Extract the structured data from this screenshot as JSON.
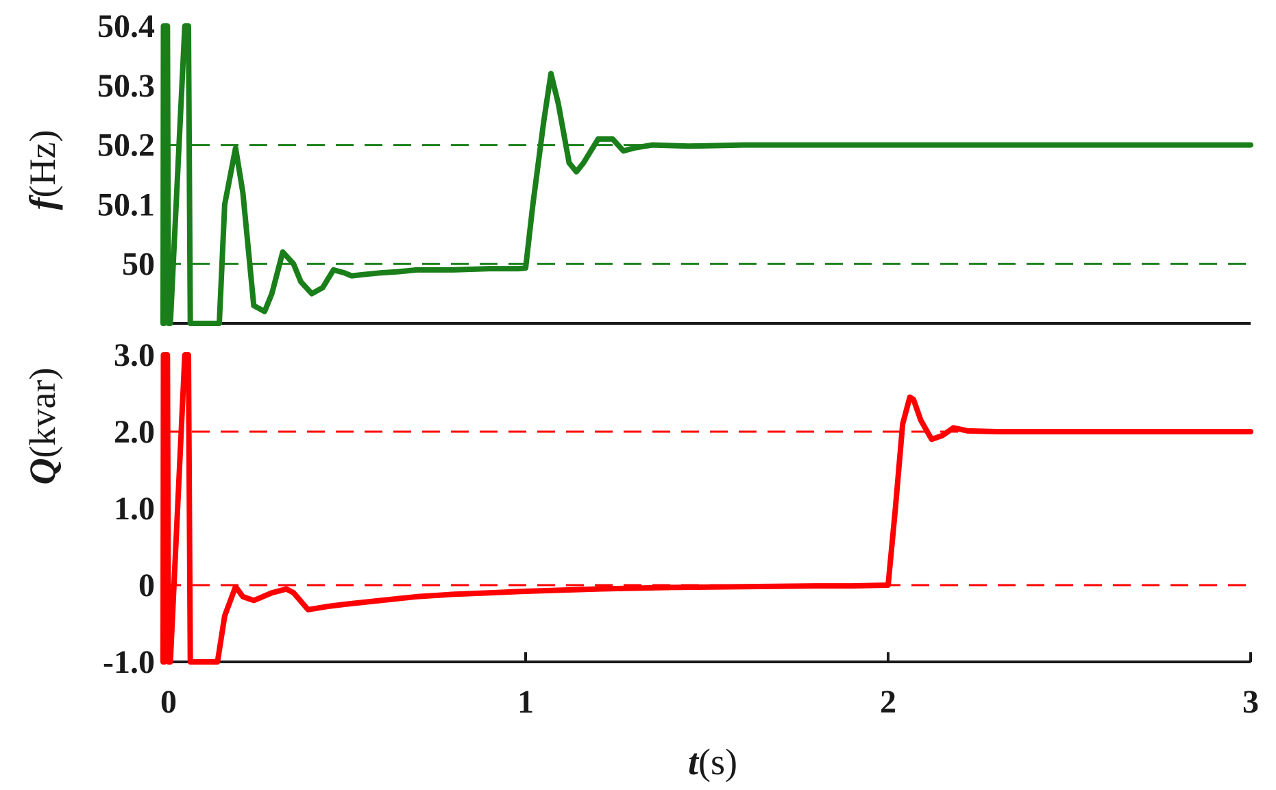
{
  "chart_data": [
    {
      "type": "line",
      "ylabel": {
        "var": "f",
        "unit": "(Hz)"
      },
      "ylim": [
        49.9,
        50.4
      ],
      "xlim": [
        0,
        3
      ],
      "yticks": [
        50,
        50.1,
        50.2,
        50.3,
        50.4
      ],
      "ytick_labels": [
        "50",
        "50.1",
        "50.2",
        "50.3",
        "50.4"
      ],
      "reference_lines": [
        50.2,
        50.0
      ],
      "grid": false,
      "legend": "none",
      "color": "#1a7f1a",
      "series": [
        {
          "x": [
            0,
            0.001,
            0.002,
            0.003,
            0.006,
            0.012,
            0.015,
            0.02,
            0.06,
            0.07,
            0.075,
            0.09,
            0.12,
            0.15,
            0.155,
            0.17,
            0.2,
            0.22,
            0.25,
            0.28,
            0.3,
            0.33,
            0.36,
            0.38,
            0.41,
            0.44,
            0.47,
            0.5,
            0.52,
            0.55,
            0.6,
            0.65,
            0.7,
            0.8,
            0.9,
            0.98,
            1.0,
            1.02,
            1.05,
            1.07,
            1.09,
            1.12,
            1.14,
            1.16,
            1.2,
            1.24,
            1.27,
            1.3,
            1.35,
            1.45,
            1.6,
            1.8,
            2.0,
            2.2,
            2.4,
            2.6,
            2.8,
            3.0
          ],
          "y": [
            49.9,
            50.4,
            50.4,
            49.9,
            50.4,
            50.4,
            49.9,
            49.9,
            50.4,
            50.4,
            49.9,
            49.9,
            49.9,
            49.9,
            49.9,
            50.1,
            50.195,
            50.12,
            49.93,
            49.92,
            49.95,
            50.02,
            50.0,
            49.97,
            49.95,
            49.96,
            49.99,
            49.985,
            49.98,
            49.982,
            49.985,
            49.987,
            49.99,
            49.99,
            49.992,
            49.992,
            49.993,
            50.1,
            50.24,
            50.32,
            50.27,
            50.17,
            50.155,
            50.17,
            50.21,
            50.21,
            50.19,
            50.195,
            50.2,
            50.198,
            50.2,
            50.2,
            50.2,
            50.2,
            50.2,
            50.2,
            50.2,
            50.2
          ]
        }
      ]
    },
    {
      "type": "line",
      "ylabel": {
        "var": "Q",
        "unit": "(kvar)"
      },
      "xlabel": {
        "var": "t",
        "unit": "(s)"
      },
      "ylim": [
        -1.0,
        3.0
      ],
      "xlim": [
        0,
        3
      ],
      "yticks": [
        -1.0,
        0,
        1.0,
        2.0,
        3.0
      ],
      "ytick_labels": [
        "-1.0",
        "0",
        "1.0",
        "2.0",
        "3.0"
      ],
      "xticks": [
        0,
        1,
        2,
        3
      ],
      "xtick_labels": [
        "0",
        "1",
        "2",
        "3"
      ],
      "reference_lines": [
        2.0,
        0.0
      ],
      "grid": false,
      "legend": "none",
      "color": "#ff0000",
      "series": [
        {
          "x": [
            0,
            0.001,
            0.002,
            0.004,
            0.006,
            0.012,
            0.015,
            0.02,
            0.06,
            0.07,
            0.075,
            0.09,
            0.12,
            0.14,
            0.15,
            0.17,
            0.2,
            0.22,
            0.25,
            0.3,
            0.34,
            0.36,
            0.4,
            0.45,
            0.5,
            0.6,
            0.7,
            0.8,
            0.9,
            1.0,
            1.2,
            1.4,
            1.6,
            1.8,
            1.9,
            2.0,
            2.02,
            2.04,
            2.06,
            2.07,
            2.09,
            2.12,
            2.15,
            2.18,
            2.22,
            2.3,
            2.4,
            2.5,
            2.6,
            2.8,
            3.0
          ],
          "y": [
            -1.0,
            3.0,
            3.0,
            -1.0,
            3.0,
            3.0,
            -1.0,
            -1.0,
            3.0,
            3.0,
            -1.0,
            -1.0,
            -1.0,
            -1.0,
            -1.0,
            -0.4,
            -0.02,
            -0.15,
            -0.2,
            -0.1,
            -0.05,
            -0.1,
            -0.32,
            -0.28,
            -0.25,
            -0.2,
            -0.15,
            -0.12,
            -0.1,
            -0.08,
            -0.05,
            -0.03,
            -0.02,
            -0.01,
            -0.01,
            0.0,
            1.0,
            2.1,
            2.45,
            2.42,
            2.15,
            1.9,
            1.95,
            2.05,
            2.01,
            2.0,
            2.0,
            2.0,
            2.0,
            2.0,
            2.0
          ]
        }
      ]
    }
  ]
}
